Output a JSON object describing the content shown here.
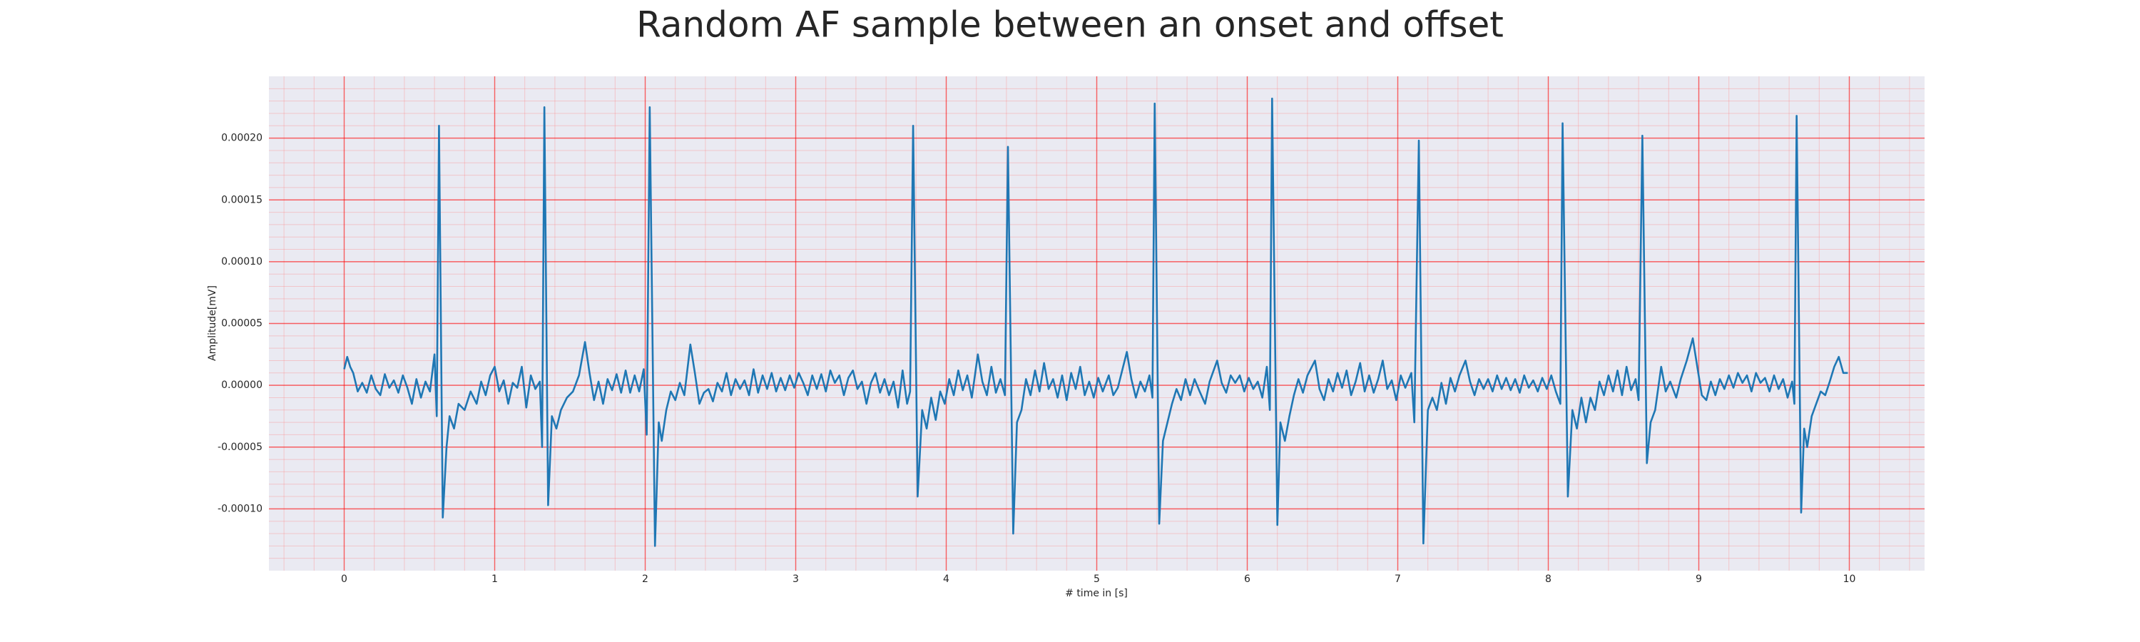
{
  "chart_data": {
    "type": "line",
    "title": "Random AF sample between an onset and offset",
    "x_label": "# time in [s]",
    "y_label": "Amplitude[mV]",
    "xlim": [
      -0.5,
      10.5
    ],
    "ylim": [
      -0.00015,
      0.00025
    ],
    "xticks": [
      0,
      1,
      2,
      3,
      4,
      5,
      6,
      7,
      8,
      9,
      10
    ],
    "yticks": [
      {
        "value": -0.0001,
        "label": "-0.00010"
      },
      {
        "value": -5e-05,
        "label": "-0.00005"
      },
      {
        "value": 0,
        "label": "0.00000"
      },
      {
        "value": 5e-05,
        "label": "0.00005"
      },
      {
        "value": 0.0001,
        "label": "0.00010"
      },
      {
        "value": 0.00015,
        "label": "0.00015"
      },
      {
        "value": 0.0002,
        "label": "0.00020"
      }
    ],
    "xminorticks": [
      -0.4,
      -0.2,
      0.2,
      0.4,
      0.6,
      0.8,
      1.2,
      1.4,
      1.6,
      1.8,
      2.2,
      2.4,
      2.6,
      2.8,
      3.2,
      3.4,
      3.6,
      3.8,
      4.2,
      4.4,
      4.6,
      4.8,
      5.2,
      5.4,
      5.6,
      5.8,
      6.2,
      6.4,
      6.6,
      6.8,
      7.2,
      7.4,
      7.6,
      7.8,
      8.2,
      8.4,
      8.6,
      8.8,
      9.2,
      9.4,
      9.6,
      9.8,
      10.2,
      10.4
    ],
    "yminorticks": [
      -0.00014,
      -0.00013,
      -0.00012,
      -0.00011,
      -9e-05,
      -8e-05,
      -7e-05,
      -6e-05,
      -4e-05,
      -3e-05,
      -2e-05,
      -1e-05,
      1e-05,
      2e-05,
      3e-05,
      4e-05,
      6e-05,
      7e-05,
      8e-05,
      9e-05,
      0.00011,
      0.00012,
      0.00013,
      0.00014,
      0.00016,
      0.00017,
      0.00018,
      0.00019,
      0.00021,
      0.00022,
      0.00023,
      0.00024
    ],
    "grid": true,
    "grid_color": "#ff0000",
    "minor_grid": true,
    "minor_grid_color": "#ff8080",
    "background": "#eaeaf2",
    "x": [
      0,
      0.02,
      0.04,
      0.06,
      0.09,
      0.12,
      0.15,
      0.18,
      0.21,
      0.24,
      0.27,
      0.3,
      0.33,
      0.36,
      0.39,
      0.42,
      0.45,
      0.48,
      0.51,
      0.54,
      0.57,
      0.6,
      0.615,
      0.63,
      0.655,
      0.68,
      0.7,
      0.73,
      0.76,
      0.8,
      0.84,
      0.88,
      0.91,
      0.94,
      0.97,
      1.0,
      1.03,
      1.06,
      1.09,
      1.12,
      1.15,
      1.18,
      1.21,
      1.24,
      1.27,
      1.3,
      1.315,
      1.33,
      1.355,
      1.38,
      1.41,
      1.44,
      1.48,
      1.52,
      1.56,
      1.6,
      1.63,
      1.66,
      1.69,
      1.72,
      1.75,
      1.78,
      1.81,
      1.84,
      1.87,
      1.9,
      1.93,
      1.96,
      1.99,
      2.01,
      2.03,
      2.065,
      2.09,
      2.11,
      2.14,
      2.17,
      2.2,
      2.23,
      2.26,
      2.3,
      2.33,
      2.36,
      2.39,
      2.42,
      2.45,
      2.48,
      2.51,
      2.54,
      2.57,
      2.6,
      2.63,
      2.66,
      2.69,
      2.72,
      2.75,
      2.78,
      2.81,
      2.84,
      2.87,
      2.9,
      2.93,
      2.96,
      2.99,
      3.02,
      3.05,
      3.08,
      3.11,
      3.14,
      3.17,
      3.2,
      3.23,
      3.26,
      3.29,
      3.32,
      3.35,
      3.38,
      3.41,
      3.44,
      3.47,
      3.5,
      3.53,
      3.56,
      3.59,
      3.62,
      3.65,
      3.68,
      3.71,
      3.74,
      3.76,
      3.78,
      3.81,
      3.84,
      3.87,
      3.9,
      3.93,
      3.96,
      3.99,
      4.02,
      4.05,
      4.08,
      4.11,
      4.14,
      4.17,
      4.21,
      4.24,
      4.27,
      4.3,
      4.33,
      4.36,
      4.39,
      4.41,
      4.445,
      4.47,
      4.5,
      4.53,
      4.56,
      4.59,
      4.62,
      4.65,
      4.68,
      4.71,
      4.74,
      4.77,
      4.8,
      4.83,
      4.86,
      4.89,
      4.92,
      4.95,
      4.98,
      5.01,
      5.04,
      5.08,
      5.11,
      5.14,
      5.2,
      5.23,
      5.26,
      5.29,
      5.32,
      5.35,
      5.37,
      5.385,
      5.415,
      5.44,
      5.47,
      5.5,
      5.53,
      5.56,
      5.59,
      5.62,
      5.65,
      5.68,
      5.72,
      5.75,
      5.8,
      5.83,
      5.86,
      5.89,
      5.92,
      5.95,
      5.98,
      6.01,
      6.04,
      6.07,
      6.1,
      6.13,
      6.15,
      6.165,
      6.2,
      6.22,
      6.25,
      6.28,
      6.31,
      6.34,
      6.37,
      6.4,
      6.45,
      6.48,
      6.51,
      6.54,
      6.57,
      6.6,
      6.63,
      6.66,
      6.69,
      6.72,
      6.75,
      6.78,
      6.81,
      6.84,
      6.87,
      6.9,
      6.93,
      6.96,
      6.99,
      7.02,
      7.05,
      7.09,
      7.11,
      7.14,
      7.17,
      7.2,
      7.23,
      7.26,
      7.29,
      7.32,
      7.35,
      7.38,
      7.41,
      7.45,
      7.48,
      7.51,
      7.54,
      7.57,
      7.6,
      7.63,
      7.66,
      7.69,
      7.72,
      7.75,
      7.78,
      7.81,
      7.84,
      7.87,
      7.9,
      7.93,
      7.96,
      7.99,
      8.02,
      8.05,
      8.08,
      8.095,
      8.13,
      8.16,
      8.19,
      8.22,
      8.25,
      8.28,
      8.31,
      8.34,
      8.37,
      8.4,
      8.43,
      8.46,
      8.49,
      8.52,
      8.55,
      8.58,
      8.6,
      8.625,
      8.655,
      8.68,
      8.71,
      8.75,
      8.78,
      8.81,
      8.85,
      8.88,
      8.92,
      8.96,
      8.99,
      9.02,
      9.05,
      9.08,
      9.11,
      9.14,
      9.17,
      9.2,
      9.23,
      9.26,
      9.29,
      9.32,
      9.35,
      9.38,
      9.41,
      9.44,
      9.47,
      9.5,
      9.53,
      9.56,
      9.59,
      9.62,
      9.635,
      9.65,
      9.68,
      9.7,
      9.72,
      9.75,
      9.78,
      9.81,
      9.84,
      9.87,
      9.9,
      9.93,
      9.96,
      9.99
    ],
    "series": [
      {
        "color": "#1f77b4",
        "values": [
          1.3e-05,
          2.3e-05,
          1.5e-05,
          1e-05,
          -5e-06,
          2e-06,
          -6e-06,
          8e-06,
          -3e-06,
          -8e-06,
          9e-06,
          -2e-06,
          4e-06,
          -6e-06,
          8e-06,
          -2e-06,
          -1.5e-05,
          5e-06,
          -1e-05,
          3e-06,
          -5e-06,
          2.5e-05,
          -2.5e-05,
          0.00021,
          -0.000107,
          -5e-05,
          -2.5e-05,
          -3.5e-05,
          -1.5e-05,
          -2e-05,
          -5e-06,
          -1.5e-05,
          3e-06,
          -8e-06,
          8e-06,
          1.5e-05,
          -5e-06,
          4e-06,
          -1.5e-05,
          2e-06,
          -2e-06,
          1.5e-05,
          -1.8e-05,
          8e-06,
          -3e-06,
          3e-06,
          -5e-05,
          0.000225,
          -9.7e-05,
          -2.5e-05,
          -3.5e-05,
          -2e-05,
          -1e-05,
          -5e-06,
          8e-06,
          3.5e-05,
          1e-05,
          -1.2e-05,
          3e-06,
          -1.5e-05,
          5e-06,
          -4e-06,
          9e-06,
          -6e-06,
          1.2e-05,
          -6e-06,
          8e-06,
          -5e-06,
          1.3e-05,
          -4e-05,
          0.000225,
          -0.00013,
          -3e-05,
          -4.5e-05,
          -2e-05,
          -5e-06,
          -1.2e-05,
          2e-06,
          -8e-06,
          3.3e-05,
          1e-05,
          -1.5e-05,
          -6e-06,
          -3e-06,
          -1.3e-05,
          2e-06,
          -5e-06,
          1e-05,
          -8e-06,
          5e-06,
          -3e-06,
          4e-06,
          -8e-06,
          1.3e-05,
          -6e-06,
          8e-06,
          -3e-06,
          1e-05,
          -5e-06,
          6e-06,
          -4e-06,
          8e-06,
          -2e-06,
          1e-05,
          2e-06,
          -8e-06,
          8e-06,
          -3e-06,
          9e-06,
          -5e-06,
          1.2e-05,
          2e-06,
          8e-06,
          -8e-06,
          6e-06,
          1.2e-05,
          -3e-06,
          3e-06,
          -1.5e-05,
          2e-06,
          1e-05,
          -6e-06,
          5e-06,
          -8e-06,
          3e-06,
          -1.8e-05,
          1.2e-05,
          -1.5e-05,
          -5e-06,
          0.00021,
          -9e-05,
          -2e-05,
          -3.5e-05,
          -1e-05,
          -2.8e-05,
          -5e-06,
          -1.5e-05,
          5e-06,
          -8e-06,
          1.2e-05,
          -4e-06,
          8e-06,
          -1e-05,
          2.5e-05,
          3e-06,
          -8e-06,
          1.5e-05,
          -6e-06,
          5e-06,
          -8e-06,
          0.000193,
          -0.00012,
          -3e-05,
          -2e-05,
          5e-06,
          -8e-06,
          1.2e-05,
          -5e-06,
          1.8e-05,
          -3e-06,
          5e-06,
          -1e-05,
          8e-06,
          -1.2e-05,
          1e-05,
          -3e-06,
          1.5e-05,
          -8e-06,
          3e-06,
          -1e-05,
          6e-06,
          -5e-06,
          8e-06,
          -8e-06,
          -2e-06,
          2.7e-05,
          5e-06,
          -1e-05,
          3e-06,
          -5e-06,
          8e-06,
          -1e-05,
          0.000228,
          -0.000112,
          -4.5e-05,
          -3e-05,
          -1.5e-05,
          -3e-06,
          -1.2e-05,
          5e-06,
          -8e-06,
          5e-06,
          -4e-06,
          -1.5e-05,
          3e-06,
          2e-05,
          2e-06,
          -6e-06,
          8e-06,
          2e-06,
          8e-06,
          -5e-06,
          6e-06,
          -3e-06,
          3e-06,
          -1e-05,
          1.5e-05,
          -2e-05,
          0.000232,
          -0.000113,
          -3e-05,
          -4.5e-05,
          -2.5e-05,
          -8e-06,
          5e-06,
          -6e-06,
          8e-06,
          2e-05,
          -3e-06,
          -1.2e-05,
          5e-06,
          -5e-06,
          1e-05,
          -2e-06,
          1.2e-05,
          -8e-06,
          3e-06,
          1.8e-05,
          -5e-06,
          8e-06,
          -6e-06,
          5e-06,
          2e-05,
          -3e-06,
          4e-06,
          -1.2e-05,
          8e-06,
          -2e-06,
          1e-05,
          -3e-05,
          0.000198,
          -0.000128,
          -2e-05,
          -1e-05,
          -2e-05,
          2e-06,
          -1.5e-05,
          6e-06,
          -5e-06,
          8e-06,
          2e-05,
          3e-06,
          -8e-06,
          5e-06,
          -3e-06,
          5e-06,
          -5e-06,
          8e-06,
          -3e-06,
          6e-06,
          -4e-06,
          5e-06,
          -6e-06,
          8e-06,
          -2e-06,
          4e-06,
          -5e-06,
          6e-06,
          -3e-06,
          8e-06,
          -5e-06,
          -1.5e-05,
          0.000212,
          -9e-05,
          -2e-05,
          -3.5e-05,
          -1e-05,
          -3e-05,
          -1e-05,
          -2e-05,
          3e-06,
          -8e-06,
          8e-06,
          -5e-06,
          1.2e-05,
          -8e-06,
          1.5e-05,
          -4e-06,
          5e-06,
          -1.2e-05,
          0.000202,
          -6.3e-05,
          -3e-05,
          -2e-05,
          1.5e-05,
          -5e-06,
          3e-06,
          -1e-05,
          5e-06,
          2e-05,
          3.8e-05,
          1.5e-05,
          -8e-06,
          -1.2e-05,
          3e-06,
          -8e-06,
          5e-06,
          -3e-06,
          8e-06,
          -2e-06,
          1e-05,
          2e-06,
          8e-06,
          -5e-06,
          1e-05,
          2e-06,
          6e-06,
          -5e-06,
          8e-06,
          -3e-06,
          5e-06,
          -1e-05,
          3e-06,
          -1.5e-05,
          0.000218,
          -0.000103,
          -3.5e-05,
          -5e-05,
          -2.5e-05,
          -1.5e-05,
          -5e-06,
          -8e-06,
          3e-06,
          1.5e-05,
          2.3e-05,
          1e-05,
          1e-05
        ]
      }
    ]
  }
}
